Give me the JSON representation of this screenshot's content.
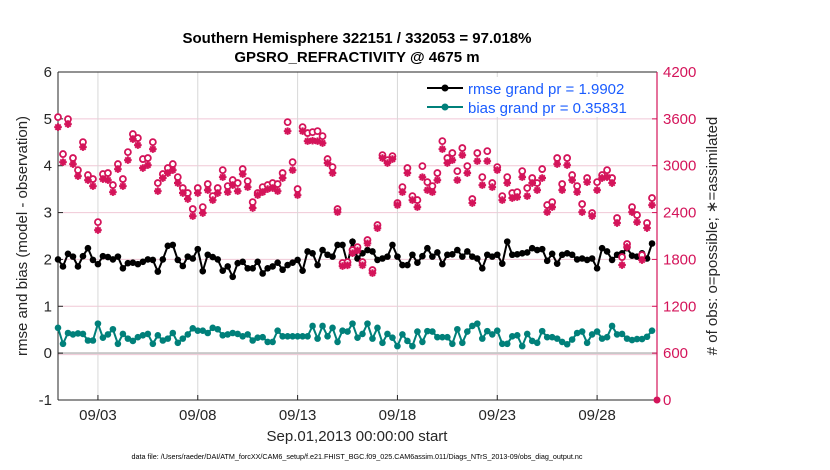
{
  "chart_data": {
    "type": "line",
    "title": [
      "Southern Hemisphere 322151 / 332053 = 97.018%",
      "GPSRO_REFRACTIVITY @ 4675 m"
    ],
    "xlabel": "Sep.01,2013 00:00:00 start",
    "ylabel_left": "rmse and bias (model - observation)",
    "ylabel_right": "# of obs: o=possible; ∗=assimilated",
    "footnote": "data file: /Users/raeder/DAI/ATM_forcXX/CAM6_setup/f.e21.FHIST_BGC.f09_025.CAM6assim.011/Diags_NTrS_2013-09/obs_diag_output.nc",
    "xlim": [
      "2013-09-01 00:00",
      "2013-10-01 00:00"
    ],
    "xticks": [
      {
        "date": "2013-09-03",
        "label": "09/03"
      },
      {
        "date": "2013-09-08",
        "label": "09/08"
      },
      {
        "date": "2013-09-13",
        "label": "09/13"
      },
      {
        "date": "2013-09-18",
        "label": "09/18"
      },
      {
        "date": "2013-09-23",
        "label": "09/23"
      },
      {
        "date": "2013-09-28",
        "label": "09/28"
      }
    ],
    "ylim_left": [
      -1,
      6
    ],
    "yticks_left": [
      "-1",
      "0",
      "1",
      "2",
      "3",
      "4",
      "5",
      "6"
    ],
    "ylim_right": [
      0,
      4200
    ],
    "yticks_right": [
      "0",
      "600",
      "1200",
      "1800",
      "2400",
      "3000",
      "3600",
      "4200"
    ],
    "grid": true,
    "legend_placement": "top-right",
    "colors": {
      "rmse": "#000000",
      "bias": "#00807a",
      "obs": "#d4145a",
      "legend_text": "#1a5cff",
      "grid_h": "#f0c8d6",
      "grid_v": "#d8d8d8",
      "zero_line": "#c8c8c8"
    },
    "series": [
      {
        "name": "rmse grand pr = 1.9902",
        "axis": "left",
        "marker": "filled-circle",
        "values": [
          2.0,
          1.85,
          2.12,
          2.06,
          1.85,
          2.07,
          2.24,
          1.99,
          1.9,
          2.07,
          2.05,
          2.0,
          2.06,
          1.81,
          1.92,
          1.93,
          1.9,
          1.95,
          2.0,
          1.99,
          1.74,
          2.0,
          2.29,
          2.31,
          1.99,
          1.86,
          2.06,
          2.02,
          2.22,
          1.75,
          2.1,
          2.05,
          2.0,
          1.76,
          1.85,
          1.63,
          1.92,
          1.95,
          1.81,
          1.81,
          1.95,
          1.7,
          1.81,
          1.85,
          1.93,
          1.78,
          1.88,
          1.93,
          1.99,
          1.76,
          2.17,
          2.13,
          1.88,
          2.2,
          2.1,
          2.06,
          2.31,
          2.31,
          1.91,
          2.38,
          2.02,
          2.13,
          2.2,
          2.17,
          1.99,
          2.02,
          2.06,
          2.31,
          2.06,
          1.88,
          1.88,
          2.1,
          1.93,
          2.07,
          2.24,
          2.06,
          2.15,
          1.9,
          2.1,
          2.11,
          2.2,
          2.06,
          2.17,
          2.06,
          2.02,
          1.81,
          2.1,
          2.06,
          2.1,
          1.91,
          2.38,
          2.1,
          2.11,
          2.13,
          2.15,
          2.24,
          2.2,
          2.22,
          1.97,
          2.12,
          1.91,
          2.1,
          2.13,
          2.1,
          2.0,
          2.02,
          1.99,
          2.02,
          1.81,
          2.24,
          2.17,
          1.99,
          2.1,
          2.13,
          2.24,
          2.08,
          2.06,
          2.13,
          2.02,
          2.34
        ]
      },
      {
        "name": "bias grand pr = 0.35831",
        "axis": "left",
        "marker": "filled-circle",
        "values": [
          0.54,
          0.2,
          0.43,
          0.4,
          0.42,
          0.41,
          0.27,
          0.27,
          0.63,
          0.33,
          0.4,
          0.51,
          0.2,
          0.41,
          0.31,
          0.26,
          0.34,
          0.38,
          0.41,
          0.2,
          0.38,
          0.27,
          0.31,
          0.43,
          0.22,
          0.31,
          0.4,
          0.53,
          0.48,
          0.48,
          0.43,
          0.54,
          0.51,
          0.38,
          0.4,
          0.43,
          0.41,
          0.36,
          0.4,
          0.27,
          0.33,
          0.34,
          0.24,
          0.24,
          0.48,
          0.36,
          0.36,
          0.36,
          0.36,
          0.36,
          0.36,
          0.58,
          0.31,
          0.58,
          0.36,
          0.54,
          0.24,
          0.48,
          0.46,
          0.63,
          0.33,
          0.41,
          0.63,
          0.31,
          0.54,
          0.22,
          0.41,
          0.33,
          0.15,
          0.4,
          0.26,
          0.15,
          0.46,
          0.24,
          0.47,
          0.46,
          0.34,
          0.34,
          0.34,
          0.2,
          0.51,
          0.22,
          0.46,
          0.58,
          0.63,
          0.31,
          0.47,
          0.4,
          0.48,
          0.2,
          0.2,
          0.36,
          0.38,
          0.15,
          0.41,
          0.26,
          0.22,
          0.47,
          0.34,
          0.34,
          0.31,
          0.24,
          0.19,
          0.29,
          0.43,
          0.46,
          0.22,
          0.4,
          0.46,
          0.31,
          0.34,
          0.58,
          0.4,
          0.41,
          0.31,
          0.28,
          0.3,
          0.3,
          0.35,
          0.48
        ]
      },
      {
        "name": "possible",
        "axis": "right",
        "marker": "o",
        "values": [
          3622,
          3149,
          3597,
          3098,
          2944,
          3302,
          2880,
          2829,
          2278,
          2893,
          2906,
          2752,
          3021,
          2829,
          3174,
          3405,
          3354,
          3085,
          3098,
          3302,
          2778,
          2893,
          2970,
          3021,
          2854,
          2714,
          2650,
          2445,
          2714,
          2470,
          2765,
          2611,
          2714,
          2944,
          2739,
          2816,
          2778,
          2957,
          2803,
          2534,
          2650,
          2726,
          2752,
          2778,
          2765,
          2906,
          3558,
          3046,
          2701,
          3494,
          3418,
          3430,
          3443,
          3379,
          3085,
          2982,
          2445,
          1754,
          1766,
          1920,
          1958,
          1766,
          2048,
          1664,
          2240,
          3136,
          3072,
          3123,
          2522,
          2726,
          2970,
          2611,
          2560,
          2995,
          2790,
          2739,
          2906,
          3315,
          3098,
          3162,
          2931,
          3226,
          2995,
          2573,
          3162,
          2854,
          3187,
          2778,
          2982,
          2611,
          2854,
          2650,
          2662,
          2931,
          2714,
          2842,
          2778,
          2957,
          2496,
          2534,
          3098,
          2765,
          3098,
          2880,
          2739,
          2509,
          2842,
          2394,
          2790,
          2880,
          2944,
          2842,
          2330,
          1830,
          1997,
          2470,
          2368,
          1856,
          2266,
          2586
        ]
      },
      {
        "name": "assimilated",
        "axis": "right",
        "marker": "*",
        "values": [
          3494,
          3046,
          3533,
          3021,
          2867,
          3238,
          2816,
          2739,
          2176,
          2829,
          2816,
          2662,
          2957,
          2739,
          3072,
          3341,
          3264,
          2970,
          3008,
          3213,
          2675,
          2842,
          2906,
          2944,
          2778,
          2650,
          2573,
          2355,
          2650,
          2394,
          2688,
          2560,
          2650,
          2854,
          2662,
          2752,
          2675,
          2893,
          2726,
          2458,
          2624,
          2662,
          2701,
          2714,
          2675,
          2842,
          3443,
          2944,
          2624,
          3443,
          3315,
          3320,
          3315,
          3290,
          3034,
          2906,
          2406,
          1715,
          1725,
          1880,
          1915,
          1725,
          2005,
          1625,
          2200,
          3098,
          3034,
          3085,
          2496,
          2662,
          2906,
          2560,
          2470,
          2854,
          2688,
          2662,
          2816,
          3213,
          3034,
          3072,
          2816,
          3136,
          2906,
          2522,
          3059,
          2752,
          3059,
          2726,
          2944,
          2560,
          2778,
          2586,
          2598,
          2854,
          2611,
          2778,
          2688,
          2842,
          2406,
          2470,
          3021,
          2688,
          3008,
          2816,
          2662,
          2406,
          2790,
          2355,
          2688,
          2842,
          2854,
          2778,
          2266,
          1728,
          1958,
          2406,
          2278,
          1792,
          2202,
          2496
        ]
      }
    ]
  }
}
